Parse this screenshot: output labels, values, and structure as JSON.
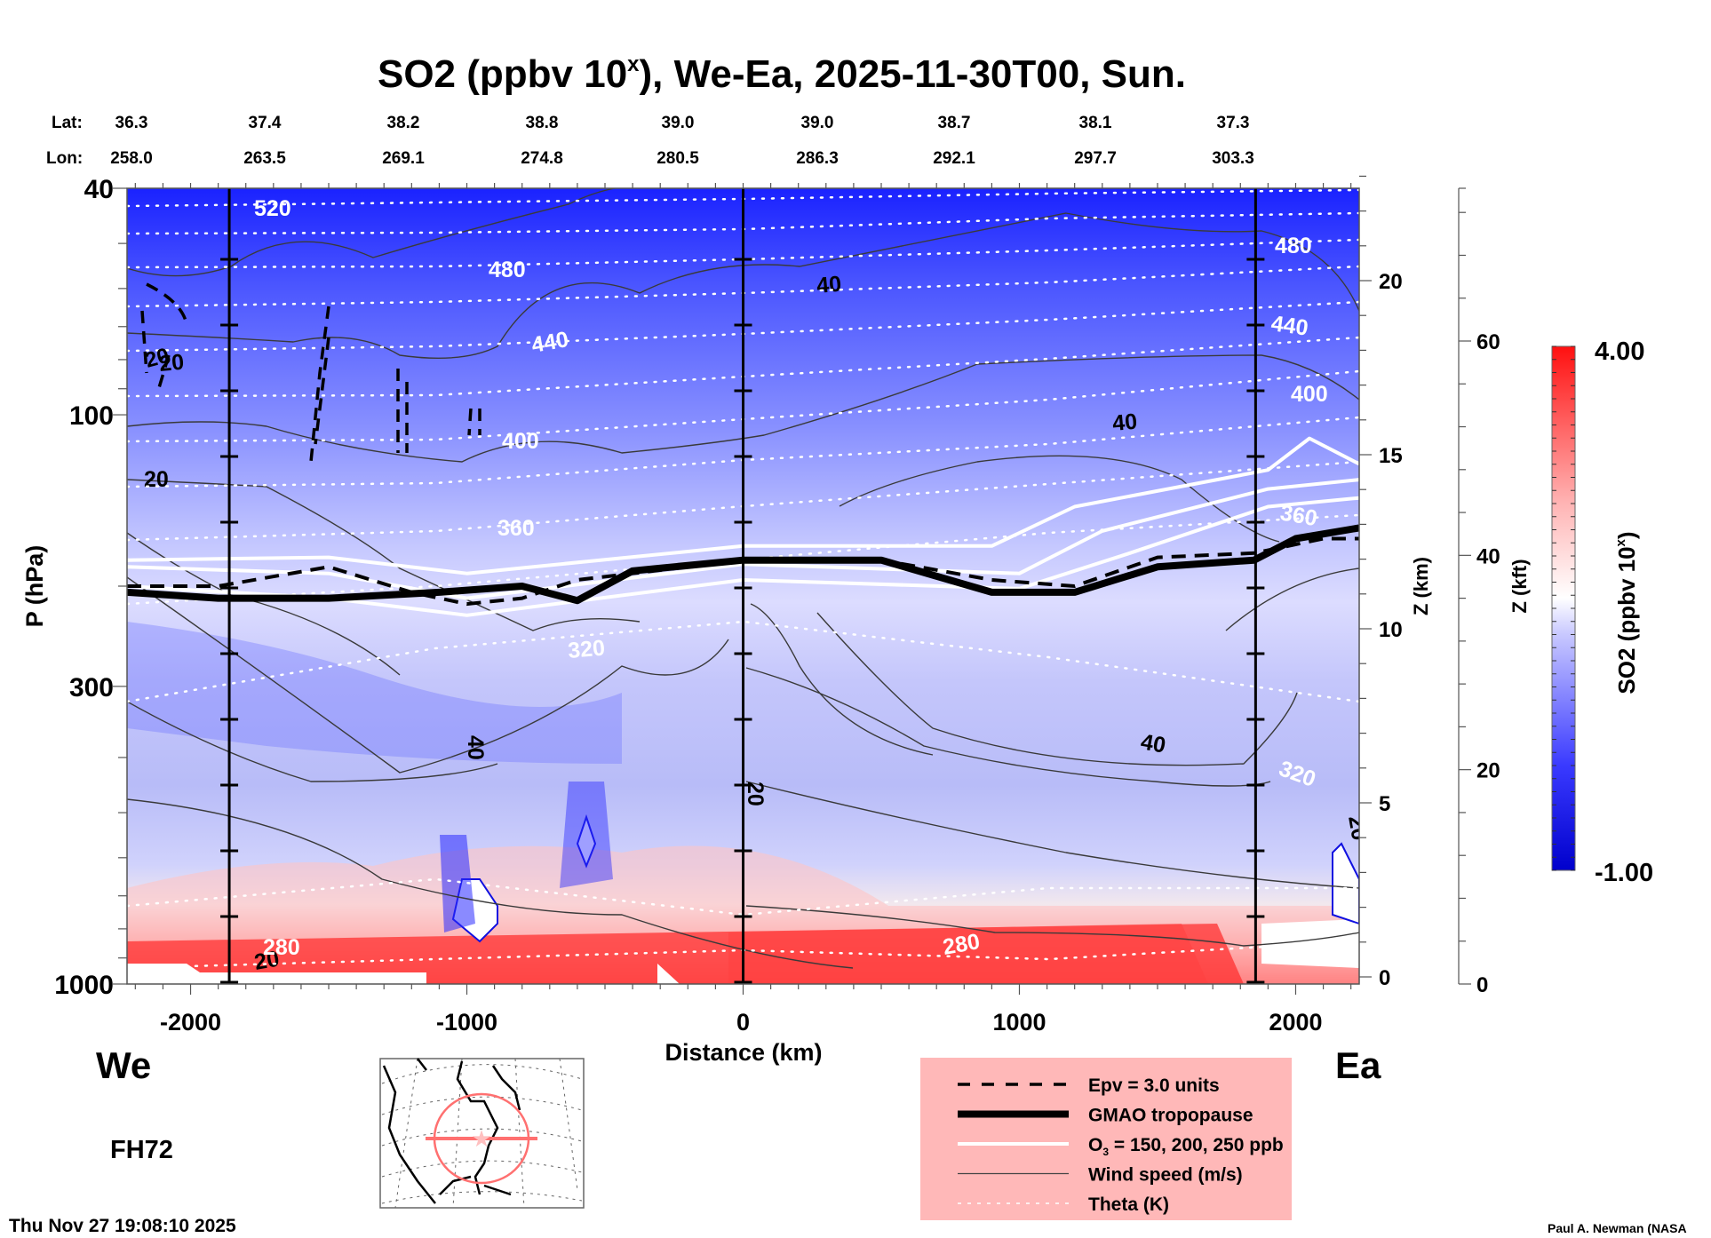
{
  "chart_data": {
    "type": "heatmap",
    "title": "SO2 (ppbv 10",
    "title_superscript": "x",
    "title_suffix": "), We-Ea, 2025-11-30T00, Sun.",
    "xlabel": "Distance (km)",
    "ylabel": "P (hPa)",
    "xlim": [
      -2230,
      2230
    ],
    "ylim": [
      1000,
      40
    ],
    "y_scale": "log",
    "x_ticks": [
      -2000,
      -1000,
      0,
      1000,
      2000
    ],
    "x_tick_labels": [
      "-2000",
      "-1000",
      "0",
      "1000",
      "2000"
    ],
    "y_ticks": [
      40,
      100,
      300,
      1000
    ],
    "y_tick_labels": [
      "40",
      "100",
      "300",
      "1000"
    ],
    "vertical_markers_km": [
      -1860,
      0,
      1855
    ],
    "lat_lon_header": {
      "lat_label": "Lat:",
      "lon_label": "Lon:",
      "columns": [
        {
          "lat": "36.3",
          "lon": "258.0"
        },
        {
          "lat": "37.4",
          "lon": "263.5"
        },
        {
          "lat": "38.2",
          "lon": "269.1"
        },
        {
          "lat": "38.8",
          "lon": "274.8"
        },
        {
          "lat": "39.0",
          "lon": "280.5"
        },
        {
          "lat": "39.0",
          "lon": "286.3"
        },
        {
          "lat": "38.7",
          "lon": "292.1"
        },
        {
          "lat": "38.1",
          "lon": "297.7"
        },
        {
          "lat": "37.3",
          "lon": "303.3"
        }
      ]
    },
    "z_km_axis": {
      "label": "Z (km)",
      "ticks": [
        0,
        5,
        10,
        15,
        20
      ],
      "tick_labels": [
        "0",
        "5",
        "10",
        "15",
        "20"
      ]
    },
    "z_kft_axis": {
      "label": "Z (kft)",
      "ticks": [
        0,
        20,
        40,
        60
      ],
      "tick_labels": [
        "0",
        "20",
        "40",
        "60"
      ]
    },
    "colorbar": {
      "label": "SO2 (ppbv 10",
      "label_superscript": "x",
      "label_suffix": ")",
      "min": -1.0,
      "max": 4.0,
      "min_label": "-1.00",
      "max_label": "4.00",
      "colors": [
        "#0000cc",
        "#ffffff",
        "#ff1010"
      ]
    },
    "field_description": {
      "stratosphere_log10_so2": -0.8,
      "upper_troposphere_log10_so2": 1.0,
      "boundary_layer_log10_so2": 3.5,
      "boundary_layer_red_extent_km": [
        -2230,
        1700
      ]
    },
    "theta_contours_K": [
      {
        "value": 520,
        "label": "520",
        "p_hpa": 44
      },
      {
        "value": 480,
        "label": "480",
        "p_hpa": 58
      },
      {
        "value": 440,
        "label": "440",
        "p_hpa": 77
      },
      {
        "value": 400,
        "label": "400",
        "p_hpa": 101
      },
      {
        "value": 360,
        "label": "360",
        "p_hpa": 150
      },
      {
        "value": 320,
        "label": "320",
        "p_hpa": 275
      },
      {
        "value": 280,
        "label": "280",
        "p_hpa": 850
      }
    ],
    "wind_speed_labels_ms": [
      "20",
      "20",
      "40",
      "40",
      "40",
      "40",
      "20",
      "20",
      "20"
    ],
    "tropopause_p_hpa": {
      "x_km": [
        -2230,
        -1900,
        -1500,
        -1100,
        -800,
        -600,
        -400,
        0,
        500,
        900,
        1200,
        1500,
        1850,
        2000,
        2230
      ],
      "p": [
        205,
        210,
        210,
        205,
        200,
        212,
        188,
        180,
        180,
        205,
        205,
        185,
        180,
        165,
        158
      ]
    },
    "epv_p_hpa": {
      "x_km": [
        -2230,
        -1900,
        -1500,
        -1200,
        -1000,
        -800,
        -600,
        -400,
        0,
        500,
        900,
        1200,
        1500,
        1850,
        2100,
        2230
      ],
      "p": [
        200,
        200,
        185,
        205,
        215,
        210,
        195,
        190,
        180,
        180,
        195,
        200,
        178,
        175,
        165,
        165
      ]
    },
    "ozone_contours_ppb": [
      {
        "value": 150,
        "x_km": [
          -2230,
          -1500,
          -1000,
          0,
          1000,
          1400,
          1900,
          2230
        ],
        "p": [
          200,
          210,
          225,
          195,
          202,
          175,
          145,
          140
        ]
      },
      {
        "value": 200,
        "x_km": [
          -2230,
          -1500,
          -1000,
          0,
          1000,
          1300,
          1900,
          2230
        ],
        "p": [
          185,
          190,
          210,
          183,
          190,
          160,
          135,
          130
        ]
      },
      {
        "value": 250,
        "x_km": [
          -2230,
          -1500,
          -1000,
          0,
          900,
          1200,
          1900,
          2050,
          2230
        ],
        "p": [
          180,
          178,
          190,
          170,
          170,
          145,
          125,
          110,
          122
        ]
      }
    ]
  },
  "legend": {
    "items": [
      {
        "style": "dashed",
        "label": "Epv = 3.0 units"
      },
      {
        "style": "thick",
        "label": "GMAO tropopause"
      },
      {
        "style": "white",
        "label": "O",
        "subscript": "3",
        "label_suffix": " = 150, 200, 250 ppb"
      },
      {
        "style": "thin",
        "label": "Wind speed (m/s)"
      },
      {
        "style": "dotted",
        "label": "Theta (K)"
      }
    ],
    "background": "#ffb8b8"
  },
  "direction_left": "We",
  "direction_right": "Ea",
  "forecast_hour": "FH72",
  "timestamp": "Thu Nov 27 19:08:10 2025",
  "credit": "Paul A. Newman (NASA"
}
